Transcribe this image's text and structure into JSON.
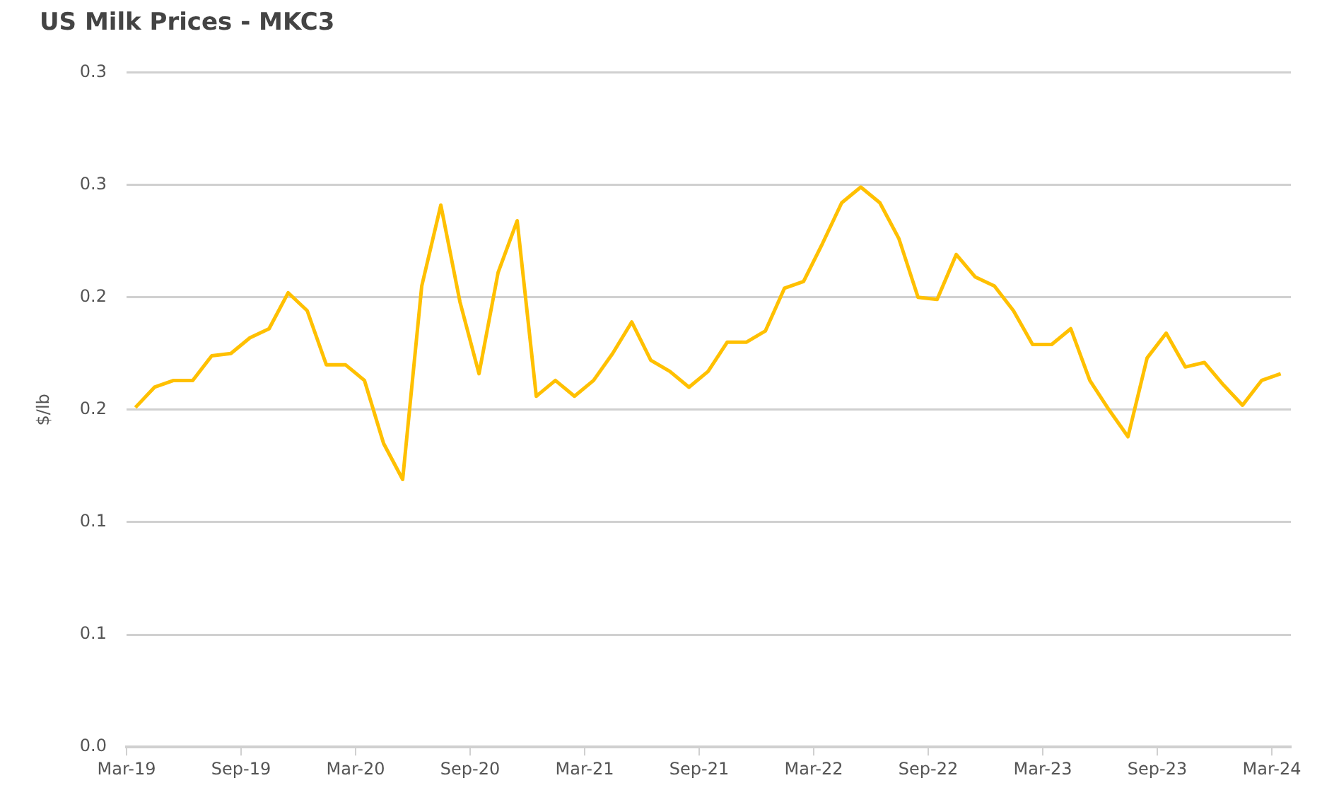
{
  "chart_data": {
    "type": "line",
    "title": "US Milk Prices - MKC3",
    "ylabel": "$/lb",
    "x": [
      "2019-03-15",
      "2019-04-15",
      "2019-05-15",
      "2019-06-15",
      "2019-07-15",
      "2019-08-15",
      "2019-09-15",
      "2019-10-15",
      "2019-11-15",
      "2019-12-15",
      "2020-01-15",
      "2020-02-15",
      "2020-03-15",
      "2020-04-15",
      "2020-05-15",
      "2020-06-15",
      "2020-07-15",
      "2020-08-15",
      "2020-09-15",
      "2020-10-15",
      "2020-11-15",
      "2020-12-15",
      "2021-01-15",
      "2021-02-15",
      "2021-03-15",
      "2021-04-15",
      "2021-05-15",
      "2021-06-15",
      "2021-07-15",
      "2021-08-15",
      "2021-09-15",
      "2021-10-15",
      "2021-11-15",
      "2021-12-15",
      "2022-01-15",
      "2022-02-15",
      "2022-03-15",
      "2022-04-15",
      "2022-05-15",
      "2022-06-15",
      "2022-07-15",
      "2022-08-15",
      "2022-09-15",
      "2022-10-15",
      "2022-11-15",
      "2022-12-15",
      "2023-01-15",
      "2023-02-15",
      "2023-03-15",
      "2023-04-15",
      "2023-05-15",
      "2023-06-15",
      "2023-07-15",
      "2023-08-15",
      "2023-09-15",
      "2023-10-15",
      "2023-11-15",
      "2023-12-15",
      "2024-01-15",
      "2024-02-15",
      "2024-03-15"
    ],
    "series": [
      {
        "color": "#ffc000",
        "values": [
          0.151,
          0.16,
          0.163,
          0.163,
          0.174,
          0.175,
          0.182,
          0.186,
          0.202,
          0.194,
          0.17,
          0.17,
          0.163,
          0.135,
          0.119,
          0.205,
          0.241,
          0.198,
          0.166,
          0.211,
          0.234,
          0.156,
          0.163,
          0.156,
          0.163,
          0.175,
          0.189,
          0.172,
          0.167,
          0.16,
          0.167,
          0.18,
          0.18,
          0.185,
          0.204,
          0.207,
          0.224,
          0.242,
          0.249,
          0.242,
          0.226,
          0.2,
          0.199,
          0.219,
          0.209,
          0.205,
          0.194,
          0.179,
          0.179,
          0.186,
          0.163,
          0.15,
          0.138,
          0.173,
          0.184,
          0.169,
          0.171,
          0.161,
          0.152,
          0.163,
          0.166
        ]
      }
    ],
    "xlim": [
      "2019-03",
      "2024-04"
    ],
    "xticks": [
      {
        "value": "2019-03",
        "label": "Mar-19"
      },
      {
        "value": "2019-09",
        "label": "Sep-19"
      },
      {
        "value": "2020-03",
        "label": "Mar-20"
      },
      {
        "value": "2020-09",
        "label": "Sep-20"
      },
      {
        "value": "2021-03",
        "label": "Mar-21"
      },
      {
        "value": "2021-09",
        "label": "Sep-21"
      },
      {
        "value": "2022-03",
        "label": "Mar-22"
      },
      {
        "value": "2022-09",
        "label": "Sep-22"
      },
      {
        "value": "2023-03",
        "label": "Mar-23"
      },
      {
        "value": "2023-09",
        "label": "Sep-23"
      },
      {
        "value": "2024-03",
        "label": "Mar-24"
      }
    ],
    "ylim": [
      0,
      0.3
    ],
    "yticks": [
      {
        "value": 0,
        "label": "0.0"
      },
      {
        "value": 0.05,
        "label": "0.1"
      },
      {
        "value": 0.1,
        "label": "0.1"
      },
      {
        "value": 0.15,
        "label": "0.2"
      },
      {
        "value": 0.2,
        "label": "0.2"
      },
      {
        "value": 0.25,
        "label": "0.3"
      },
      {
        "value": 0.3,
        "label": "0.3"
      }
    ],
    "grid": "y",
    "legend": false,
    "marker": "none",
    "line_style": "solid"
  }
}
